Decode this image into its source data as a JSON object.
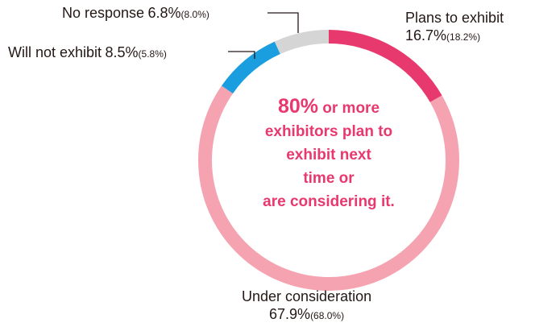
{
  "chart_data": {
    "type": "pie",
    "variant": "donut",
    "categories": [
      "Plans to exhibit",
      "Under consideration",
      "Will not exhibit",
      "No response"
    ],
    "values": [
      16.7,
      67.9,
      8.5,
      6.8
    ],
    "value_labels": [
      "16.7%",
      "67.9%",
      "8.5%",
      "6.8%"
    ],
    "previous_values": [
      18.2,
      68.0,
      5.8,
      8.0
    ],
    "previous_labels": [
      "(18.2%)",
      "(68.0%)",
      "(5.8%)",
      "(8.0%)"
    ],
    "colors": [
      "#e8396f",
      "#f5a3b0",
      "#1a9ee0",
      "#d5d5d5"
    ],
    "center_text": {
      "highlight": "80%",
      "line1_rest": " or more",
      "line2": "exhibitors plan to",
      "line3": "exhibit next",
      "line4": "time or",
      "line5": "are considering it."
    }
  }
}
